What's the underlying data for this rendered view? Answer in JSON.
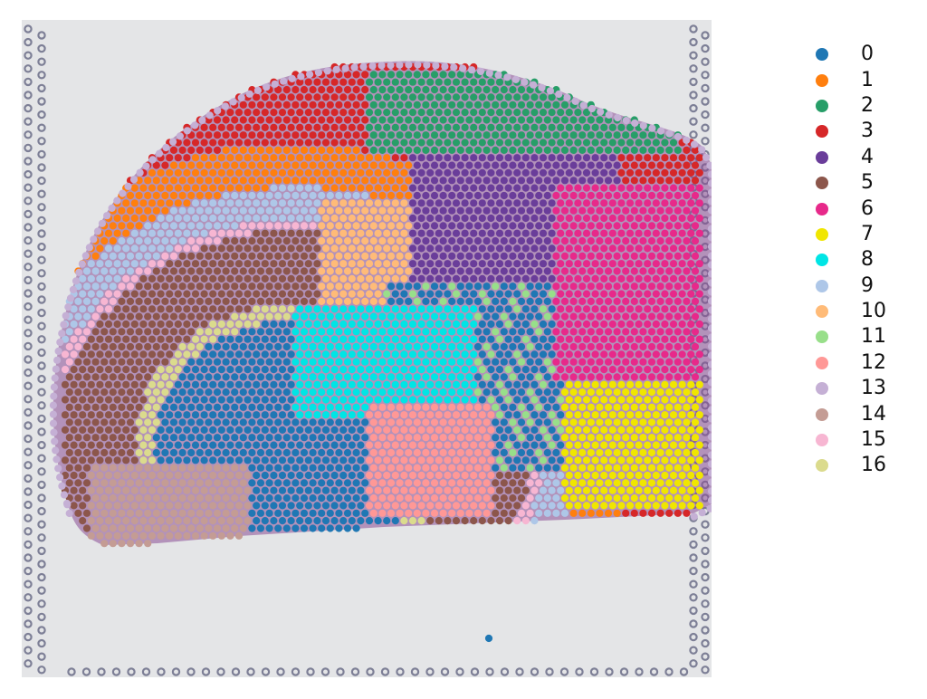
{
  "chart_data": {
    "type": "scatter",
    "title": "",
    "xlabel": "",
    "ylabel": "",
    "legend_position": "right",
    "legend": [
      {
        "label": "0",
        "color": "#1f77b4"
      },
      {
        "label": "1",
        "color": "#ff7f0e"
      },
      {
        "label": "2",
        "color": "#279e68"
      },
      {
        "label": "3",
        "color": "#d62728"
      },
      {
        "label": "4",
        "color": "#6a3d9a"
      },
      {
        "label": "5",
        "color": "#8c564b"
      },
      {
        "label": "6",
        "color": "#e7298a"
      },
      {
        "label": "7",
        "color": "#f0e600"
      },
      {
        "label": "8",
        "color": "#00e5e5"
      },
      {
        "label": "9",
        "color": "#aec7e8"
      },
      {
        "label": "10",
        "color": "#ffbb78"
      },
      {
        "label": "11",
        "color": "#98df8a"
      },
      {
        "label": "12",
        "color": "#ff9896"
      },
      {
        "label": "13",
        "color": "#c5b0d5"
      },
      {
        "label": "14",
        "color": "#c49c94"
      },
      {
        "label": "15",
        "color": "#f7b6d2"
      },
      {
        "label": "16",
        "color": "#dbdb8d"
      }
    ],
    "background": {
      "slide_color": "#e4e5e7",
      "tissue_color": "#8a4f96",
      "fiducial_color": "#7d7f96"
    }
  }
}
